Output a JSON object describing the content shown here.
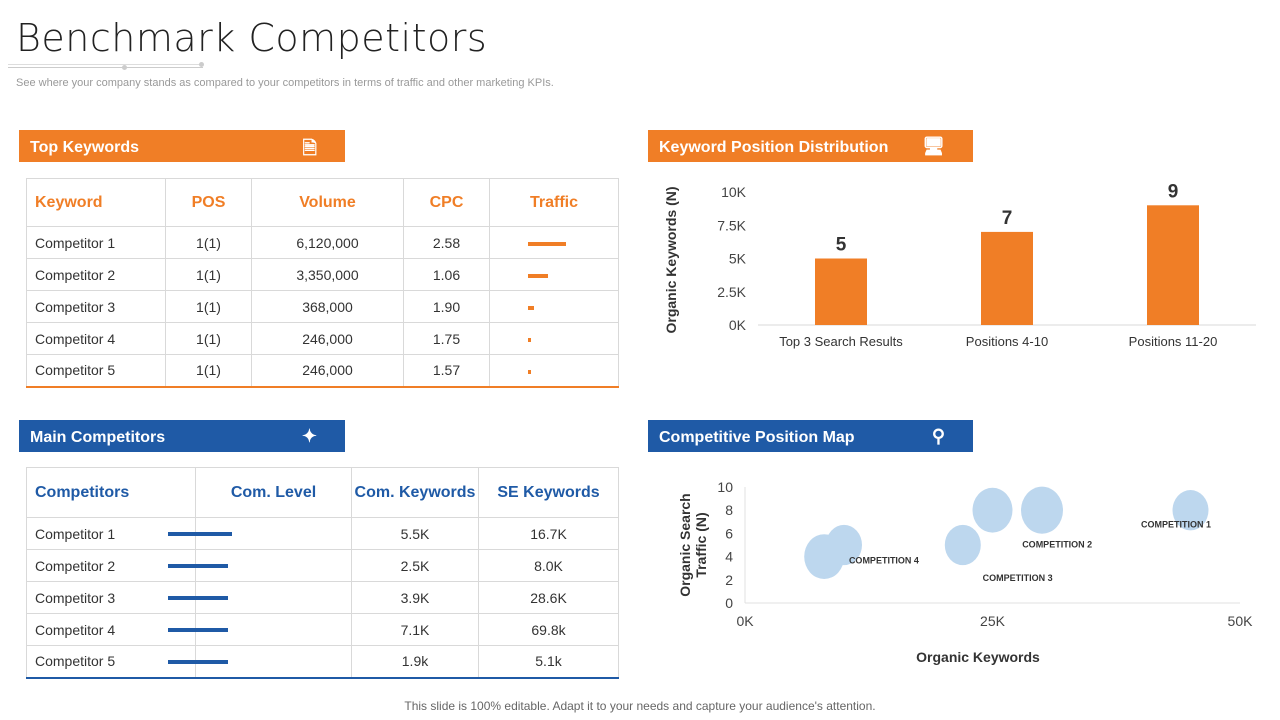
{
  "title": "Benchmark Competitors",
  "subtitle": "See where your company stands as compared to your competitors in terms of traffic and other marketing KPIs.",
  "footer": "This slide is 100% editable. Adapt it to your needs and capture your audience's attention.",
  "colors": {
    "orange": "#F07E26",
    "blue": "#1F5AA6",
    "bubble": "#BDD7EE"
  },
  "top_keywords": {
    "header": "Top Keywords",
    "icon": "document-icon",
    "columns": [
      "Keyword",
      "POS",
      "Volume",
      "CPC",
      "Traffic"
    ],
    "rows": [
      {
        "keyword": "Competitor 1",
        "pos": "1(1)",
        "volume": "6,120,000",
        "cpc": "2.58",
        "traffic": 1.0
      },
      {
        "keyword": "Competitor 2",
        "pos": "1(1)",
        "volume": "3,350,000",
        "cpc": "1.06",
        "traffic": 0.52
      },
      {
        "keyword": "Competitor 3",
        "pos": "1(1)",
        "volume": "368,000",
        "cpc": "1.90",
        "traffic": 0.16
      },
      {
        "keyword": "Competitor 4",
        "pos": "1(1)",
        "volume": "246,000",
        "cpc": "1.75",
        "traffic": 0.08
      },
      {
        "keyword": "Competitor 5",
        "pos": "1(1)",
        "volume": "246,000",
        "cpc": "1.57",
        "traffic": 0.08
      }
    ]
  },
  "main_competitors": {
    "header": "Main Competitors",
    "icon": "network-icon",
    "columns": [
      "Competitors",
      "Com. Level",
      "Com. Keywords",
      "SE Keywords"
    ],
    "rows": [
      {
        "name": "Competitor 1",
        "level": 1.0,
        "com_keywords": "5.5K",
        "se_keywords": "16.7K"
      },
      {
        "name": "Competitor 2",
        "level": 0.94,
        "com_keywords": "2.5K",
        "se_keywords": "8.0K"
      },
      {
        "name": "Competitor 3",
        "level": 0.94,
        "com_keywords": "3.9K",
        "se_keywords": "28.6K"
      },
      {
        "name": "Competitor 4",
        "level": 0.94,
        "com_keywords": "7.1K",
        "se_keywords": "69.8k"
      },
      {
        "name": "Competitor 5",
        "level": 0.94,
        "com_keywords": "1.9k",
        "se_keywords": "5.1k"
      }
    ]
  },
  "chart_data": [
    {
      "type": "bar",
      "header": "Keyword Position Distribution",
      "icon": "monitor-icon",
      "categories": [
        "Top 3 Search Results",
        "Positions 4-10",
        "Positions 11-20"
      ],
      "values": [
        5000,
        7000,
        9000
      ],
      "data_labels": [
        "5",
        "7",
        "9"
      ],
      "ylabel": "Organic Keywords (N)",
      "yticks": [
        "0K",
        "2.5K",
        "5K",
        "7.5K",
        "10K"
      ],
      "ylim": [
        0,
        10000
      ],
      "grid": false
    },
    {
      "type": "scatter",
      "subtype": "bubble",
      "header": "Competitive Position Map",
      "icon": "location-pin-icon",
      "xlabel": "Organic Keywords",
      "ylabel": "Organic Search Traffic (N)",
      "xticks": [
        "0K",
        "25K",
        "50K"
      ],
      "yticks": [
        "0",
        "2",
        "4",
        "6",
        "8",
        "10"
      ],
      "xlim": [
        0,
        50000
      ],
      "ylim": [
        0,
        10
      ],
      "points": [
        {
          "x": 8000,
          "y": 4,
          "size": 20
        },
        {
          "x": 10000,
          "y": 5,
          "size": 18
        },
        {
          "x": 22000,
          "y": 5,
          "size": 18
        },
        {
          "x": 25000,
          "y": 8,
          "size": 20
        },
        {
          "x": 30000,
          "y": 8,
          "size": 21
        },
        {
          "x": 45000,
          "y": 8,
          "size": 18
        }
      ],
      "annotations": [
        {
          "text": "COMPETITION 1",
          "x": 40000,
          "y": 6.5
        },
        {
          "text": "COMPETITION 2",
          "x": 28000,
          "y": 4.8
        },
        {
          "text": "COMPETITION 3",
          "x": 24000,
          "y": 1.9
        },
        {
          "text": "COMPETITION 4",
          "x": 10500,
          "y": 3.4
        }
      ]
    }
  ]
}
